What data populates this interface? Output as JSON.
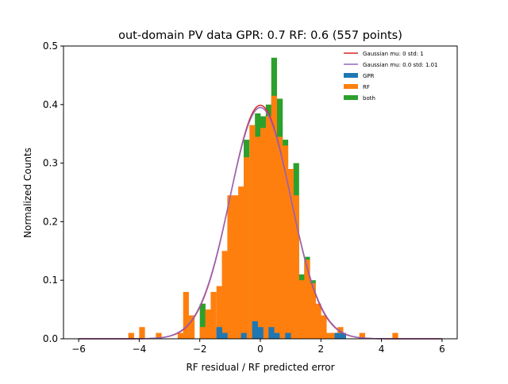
{
  "chart_data": {
    "type": "bar",
    "title": "out-domain PV data GPR: 0.7 RF: 0.6 (557 points)",
    "xlabel": "RF residual / RF predicted error",
    "ylabel": "Normalized Counts",
    "xlim": [
      -6.5,
      6.5
    ],
    "ylim": [
      0,
      0.5
    ],
    "xticks": [
      "−6",
      "−4",
      "−2",
      "0",
      "2",
      "4",
      "6"
    ],
    "xtick_values": [
      -6,
      -4,
      -2,
      0,
      2,
      4,
      6
    ],
    "yticks": [
      "0.0",
      "0.1",
      "0.2",
      "0.3",
      "0.4",
      "0.5"
    ],
    "ytick_values": [
      0,
      0.1,
      0.2,
      0.3,
      0.4,
      0.5
    ],
    "grid": false,
    "legend_position": "top-right",
    "bin_width": 0.182,
    "series": [
      {
        "name": "GPR",
        "color": "#1f77b4",
        "bins": [
          {
            "x0": -1.45,
            "height": 0.02
          },
          {
            "x0": -1.27,
            "height": 0.01
          },
          {
            "x0": -0.64,
            "height": 0.01
          },
          {
            "x0": -0.27,
            "height": 0.03
          },
          {
            "x0": -0.09,
            "height": 0.02
          },
          {
            "x0": 0.27,
            "height": 0.02
          },
          {
            "x0": 0.45,
            "height": 0.01
          },
          {
            "x0": 0.82,
            "height": 0.01
          },
          {
            "x0": 2.45,
            "height": 0.01
          },
          {
            "x0": 2.64,
            "height": 0.01
          }
        ]
      },
      {
        "name": "RF",
        "color": "#ff7f0e",
        "bins": [
          {
            "x0": -4.36,
            "height": 0.01
          },
          {
            "x0": -4.0,
            "height": 0.02
          },
          {
            "x0": -3.45,
            "height": 0.01
          },
          {
            "x0": -2.73,
            "height": 0.01
          },
          {
            "x0": -2.55,
            "height": 0.08
          },
          {
            "x0": -2.36,
            "height": 0.04
          },
          {
            "x0": -2.0,
            "height": 0.02
          },
          {
            "x0": -1.82,
            "height": 0.05
          },
          {
            "x0": -1.64,
            "height": 0.08
          },
          {
            "x0": -1.45,
            "height": 0.09
          },
          {
            "x0": -1.27,
            "height": 0.15
          },
          {
            "x0": -1.09,
            "height": 0.245
          },
          {
            "x0": -0.91,
            "height": 0.245
          },
          {
            "x0": -0.73,
            "height": 0.26
          },
          {
            "x0": -0.55,
            "height": 0.31
          },
          {
            "x0": -0.36,
            "height": 0.365
          },
          {
            "x0": -0.18,
            "height": 0.345
          },
          {
            "x0": 0.0,
            "height": 0.36
          },
          {
            "x0": 0.18,
            "height": 0.38
          },
          {
            "x0": 0.36,
            "height": 0.415
          },
          {
            "x0": 0.55,
            "height": 0.345
          },
          {
            "x0": 0.73,
            "height": 0.33
          },
          {
            "x0": 0.91,
            "height": 0.29
          },
          {
            "x0": 1.09,
            "height": 0.245
          },
          {
            "x0": 1.27,
            "height": 0.1
          },
          {
            "x0": 1.45,
            "height": 0.135
          },
          {
            "x0": 1.64,
            "height": 0.095
          },
          {
            "x0": 1.82,
            "height": 0.06
          },
          {
            "x0": 2.0,
            "height": 0.04
          },
          {
            "x0": 2.18,
            "height": 0.01
          },
          {
            "x0": 2.36,
            "height": 0.01
          },
          {
            "x0": 2.55,
            "height": 0.02
          },
          {
            "x0": 3.27,
            "height": 0.01
          },
          {
            "x0": 4.36,
            "height": 0.01
          }
        ]
      },
      {
        "name": "both",
        "color": "#2ca02c",
        "bins": [
          {
            "x0": -2.0,
            "height": 0.06
          },
          {
            "x0": -0.55,
            "height": 0.34
          },
          {
            "x0": -0.18,
            "height": 0.385
          },
          {
            "x0": 0.0,
            "height": 0.38
          },
          {
            "x0": 0.18,
            "height": 0.4
          },
          {
            "x0": 0.36,
            "height": 0.48
          },
          {
            "x0": 0.55,
            "height": 0.41
          },
          {
            "x0": 0.73,
            "height": 0.34
          },
          {
            "x0": 1.09,
            "height": 0.3
          },
          {
            "x0": 1.27,
            "height": 0.11
          },
          {
            "x0": 1.45,
            "height": 0.14
          },
          {
            "x0": 1.64,
            "height": 0.1
          }
        ]
      }
    ],
    "curves": [
      {
        "name": "Gaussian mu: 0 std: 1",
        "color": "#d62728",
        "mu": 0,
        "std": 1
      },
      {
        "name": "Gaussian mu: 0.0 std: 1.01",
        "color": "#9467bd",
        "mu": 0.0,
        "std": 1.01
      }
    ],
    "curve_range": [
      -6,
      6
    ]
  }
}
